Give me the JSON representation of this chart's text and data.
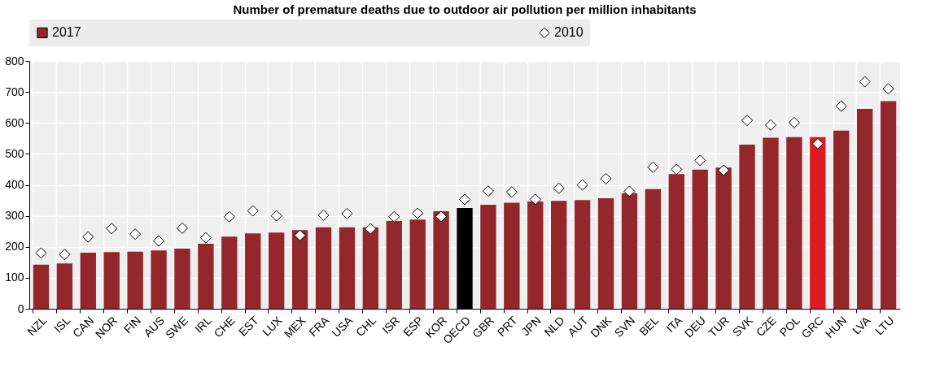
{
  "chart_data": {
    "type": "bar",
    "title": "Number of premature deaths due to outdoor air pollution per million inhabitants",
    "categories": [
      "NZL",
      "ISL",
      "CAN",
      "NOR",
      "FIN",
      "AUS",
      "SWE",
      "IRL",
      "CHE",
      "EST",
      "LUX",
      "MEX",
      "FRA",
      "USA",
      "CHL",
      "ISR",
      "ESP",
      "KOR",
      "OECD",
      "GBR",
      "PRT",
      "JPN",
      "NLD",
      "AUT",
      "DNK",
      "SVN",
      "BEL",
      "ITA",
      "DEU",
      "TUR",
      "SVK",
      "CZE",
      "POL",
      "GRC",
      "HUN",
      "LVA",
      "LTU"
    ],
    "series": [
      {
        "name": "2017",
        "color": "#93272c",
        "colors": [
          "#93272c",
          "#93272c",
          "#93272c",
          "#93272c",
          "#93272c",
          "#93272c",
          "#93272c",
          "#93272c",
          "#93272c",
          "#93272c",
          "#93272c",
          "#93272c",
          "#93272c",
          "#93272c",
          "#93272c",
          "#93272c",
          "#93272c",
          "#93272c",
          "#000000",
          "#93272c",
          "#93272c",
          "#93272c",
          "#93272c",
          "#93272c",
          "#93272c",
          "#93272c",
          "#93272c",
          "#93272c",
          "#93272c",
          "#93272c",
          "#93272c",
          "#93272c",
          "#93272c",
          "#dd1c22",
          "#93272c",
          "#93272c",
          "#93272c"
        ],
        "values": [
          142,
          146,
          181,
          183,
          184,
          188,
          194,
          210,
          233,
          243,
          246,
          254,
          263,
          263,
          263,
          283,
          288,
          315,
          325,
          336,
          342,
          346,
          348,
          351,
          357,
          373,
          386,
          435,
          449,
          456,
          530,
          552,
          554,
          554,
          575,
          645,
          670
        ]
      },
      {
        "name": "2010",
        "type": "scatter",
        "color": "#ffffff",
        "marker": "diamond",
        "values": [
          180,
          175,
          232,
          259,
          241,
          219,
          260,
          229,
          297,
          316,
          300,
          237,
          302,
          307,
          258,
          297,
          308,
          298,
          353,
          380,
          377,
          353,
          389,
          400,
          420,
          379,
          457,
          450,
          479,
          447,
          608,
          593,
          601,
          533,
          654,
          733,
          710
        ]
      }
    ],
    "ylim": [
      0,
      800
    ],
    "yticks": [
      0,
      100,
      200,
      300,
      400,
      500,
      600,
      700,
      800
    ],
    "grid": true,
    "legend": "top"
  }
}
